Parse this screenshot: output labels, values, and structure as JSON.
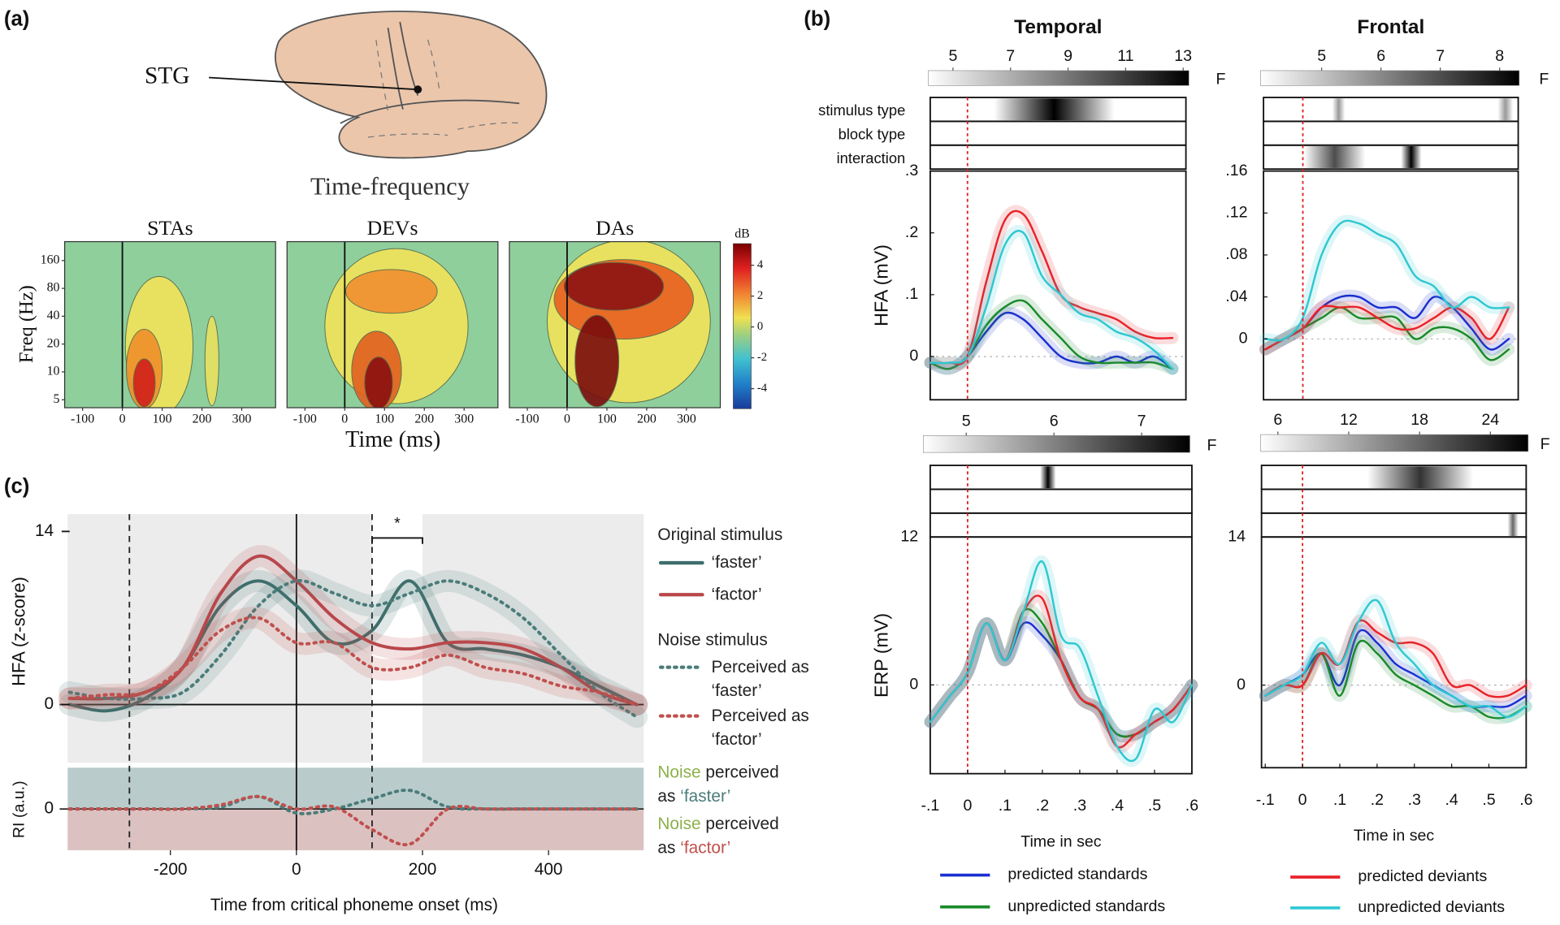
{
  "panel_labels": [
    "(a)",
    "(b)",
    "(c)"
  ],
  "panel_a": {
    "region_label": "STG",
    "title": "Time-frequency",
    "conditions": [
      "STAs",
      "DEVs",
      "DAs"
    ],
    "ylabel": "Freq (Hz)",
    "xlabel": "Time (ms)",
    "xlim": [
      -145,
      385
    ],
    "ylim": [
      4.1,
      256
    ],
    "ylog": true,
    "xticks": [
      -100,
      0,
      100,
      200,
      300
    ],
    "yticks": [
      5,
      10,
      20,
      40,
      80,
      160
    ],
    "colorbar_label": "dB",
    "clim": [
      -5.3,
      5.4
    ],
    "colorbar_ticks": [
      4,
      2,
      0,
      -2,
      -4
    ]
  },
  "chart_data": [
    {
      "type": "line",
      "title": "Temporal",
      "ylabel": "HFA (mV)",
      "strip_labels": [
        "stimulus type",
        "block type",
        "interaction"
      ],
      "f_label": "F",
      "f_lim": [
        4.14,
        13.2
      ],
      "f_ticks": [
        5,
        7,
        9,
        11,
        13
      ],
      "onset": 0,
      "baseline": 0,
      "x": [
        -0.1,
        -0.05,
        0,
        0.05,
        0.1,
        0.15,
        0.2,
        0.25,
        0.3,
        0.35,
        0.4,
        0.45,
        0.5,
        0.55
      ],
      "xlim": [
        -0.1,
        0.586
      ],
      "ylim": [
        -0.07,
        0.3
      ],
      "yticks": [
        0,
        {
          "value": 0.1,
          "label": ".1"
        },
        {
          "value": 0.2,
          "label": ".2"
        },
        {
          "value": 0.3,
          "label": ".3"
        }
      ],
      "series": [
        {
          "name": "predicted standards",
          "color": "#1a2fd0",
          "values": [
            -0.01,
            -0.02,
            0.0,
            0.04,
            0.07,
            0.06,
            0.03,
            0.0,
            -0.01,
            -0.01,
            0.0,
            -0.01,
            0.0,
            -0.02
          ]
        },
        {
          "name": "unpredicted standards",
          "color": "#1a8a2a",
          "values": [
            -0.01,
            -0.02,
            0.0,
            0.05,
            0.08,
            0.09,
            0.06,
            0.03,
            0.0,
            -0.01,
            -0.01,
            -0.01,
            -0.01,
            -0.02
          ]
        },
        {
          "name": "predicted deviants",
          "color": "#e8232a",
          "values": [
            -0.01,
            -0.01,
            0.0,
            0.12,
            0.22,
            0.23,
            0.17,
            0.1,
            0.08,
            0.07,
            0.06,
            0.04,
            0.03,
            0.03
          ]
        },
        {
          "name": "unpredicted deviants",
          "color": "#2ec8d2",
          "values": [
            -0.01,
            -0.01,
            0.0,
            0.08,
            0.18,
            0.2,
            0.13,
            0.1,
            0.07,
            0.06,
            0.04,
            0.03,
            0.01,
            -0.02
          ]
        }
      ]
    },
    {
      "type": "line",
      "ylabel": "ERP (mV)",
      "xlabel": "Time in sec",
      "f_label": "F",
      "f_lim": [
        4.51,
        7.55
      ],
      "f_ticks": [
        5,
        6,
        7
      ],
      "onset": 0,
      "baseline": 0,
      "x": [
        -0.1,
        -0.05,
        0,
        0.05,
        0.1,
        0.15,
        0.2,
        0.25,
        0.3,
        0.35,
        0.4,
        0.45,
        0.5,
        0.55,
        0.6
      ],
      "xlim": [
        -0.1,
        0.6
      ],
      "ylim": [
        -7.2,
        12
      ],
      "yticks": [
        0,
        12
      ],
      "xticks": [
        {
          "value": -0.1,
          "label": "-.1"
        },
        0,
        {
          "value": 0.1,
          "label": ".1"
        },
        {
          "value": 0.2,
          "label": ".2"
        },
        {
          "value": 0.3,
          "label": ".3"
        },
        {
          "value": 0.4,
          "label": ".4"
        },
        {
          "value": 0.5,
          "label": ".5"
        },
        {
          "value": 0.6,
          "label": ".6"
        }
      ],
      "series": [
        {
          "color": "#1a2fd0",
          "values": [
            -3,
            -1,
            1,
            5,
            2,
            5,
            4,
            2,
            -1,
            -2,
            -4,
            -4,
            -3,
            -2,
            0
          ]
        },
        {
          "color": "#1a8a2a",
          "values": [
            -3,
            -1,
            1,
            5,
            2,
            6,
            5,
            2,
            -1,
            -2,
            -4,
            -4,
            -3,
            -2,
            0
          ]
        },
        {
          "color": "#e8232a",
          "values": [
            -3,
            -1,
            1,
            5,
            2,
            6,
            7,
            2,
            -1,
            -2,
            -5,
            -4,
            -3,
            -2,
            0
          ]
        },
        {
          "color": "#2ec8d2",
          "values": [
            -3,
            -1,
            1,
            5,
            2,
            6,
            10,
            4,
            3,
            -1,
            -5,
            -6,
            -2,
            -3,
            0
          ]
        }
      ]
    },
    {
      "type": "line",
      "title": "Frontal",
      "f_label": "F",
      "f_lim": [
        3.97,
        8.33
      ],
      "f_ticks": [
        5,
        6,
        7,
        8
      ],
      "onset": 0,
      "baseline": 0,
      "x": [
        -0.1,
        -0.05,
        0,
        0.05,
        0.1,
        0.15,
        0.2,
        0.25,
        0.3,
        0.35,
        0.4,
        0.45,
        0.5,
        0.55
      ],
      "xlim": [
        -0.105,
        0.575
      ],
      "ylim": [
        -0.058,
        0.16
      ],
      "yticks": [
        0,
        {
          "value": 0.04,
          "label": ".04"
        },
        {
          "value": 0.08,
          "label": ".08"
        },
        {
          "value": 0.12,
          "label": ".12"
        },
        {
          "value": 0.16,
          "label": ".16"
        }
      ],
      "series": [
        {
          "color": "#1a2fd0",
          "values": [
            -0.01,
            0.0,
            0.01,
            0.03,
            0.04,
            0.04,
            0.03,
            0.03,
            0.02,
            0.04,
            0.03,
            0.01,
            -0.01,
            0.0
          ]
        },
        {
          "color": "#1a8a2a",
          "values": [
            -0.01,
            0.0,
            0.01,
            0.02,
            0.03,
            0.02,
            0.02,
            0.02,
            0.0,
            0.01,
            0.01,
            0.0,
            -0.02,
            -0.01
          ]
        },
        {
          "color": "#e8232a",
          "values": [
            -0.01,
            0.0,
            0.01,
            0.03,
            0.03,
            0.03,
            0.02,
            0.01,
            0.01,
            0.02,
            0.03,
            0.02,
            0.0,
            0.03
          ]
        },
        {
          "color": "#2ec8d2",
          "values": [
            0.0,
            0.0,
            0.02,
            0.08,
            0.11,
            0.11,
            0.1,
            0.09,
            0.06,
            0.05,
            0.03,
            0.04,
            0.03,
            0.03
          ]
        }
      ]
    },
    {
      "type": "line",
      "xlabel": "Time in sec",
      "f_label": "F",
      "f_lim": [
        4.53,
        27.2
      ],
      "f_ticks": [
        6,
        12,
        18,
        24
      ],
      "onset": 0,
      "baseline": 0,
      "x": [
        -0.1,
        -0.05,
        0,
        0.05,
        0.1,
        0.15,
        0.2,
        0.25,
        0.3,
        0.35,
        0.4,
        0.45,
        0.5,
        0.55,
        0.6
      ],
      "xlim": [
        -0.11,
        0.6
      ],
      "ylim": [
        -7.8,
        14
      ],
      "yticks": [
        0,
        14
      ],
      "xticks": [
        {
          "value": -0.1,
          "label": "-.1"
        },
        0,
        {
          "value": 0.1,
          "label": ".1"
        },
        {
          "value": 0.2,
          "label": ".2"
        },
        {
          "value": 0.3,
          "label": ".3"
        },
        {
          "value": 0.4,
          "label": ".4"
        },
        {
          "value": 0.5,
          "label": ".5"
        },
        {
          "value": 0.6,
          "label": ".6"
        }
      ],
      "series": [
        {
          "color": "#1a2fd0",
          "values": [
            -1,
            0,
            1,
            3,
            0,
            5,
            4,
            2,
            1,
            0,
            -1,
            -2,
            -2,
            -2,
            -1
          ]
        },
        {
          "color": "#1a8a2a",
          "values": [
            -1,
            0,
            0,
            3,
            -1,
            4,
            3,
            1,
            0,
            -1,
            -2,
            -2,
            -3,
            -3,
            -2
          ]
        },
        {
          "color": "#e8232a",
          "values": [
            -1,
            0,
            0,
            3,
            2,
            6,
            5,
            4,
            4,
            3,
            0,
            0,
            -1,
            -1,
            0
          ]
        },
        {
          "color": "#2ec8d2",
          "values": [
            -1,
            0,
            1,
            4,
            2,
            6,
            8,
            4,
            2,
            0,
            -1,
            -2,
            -2,
            -3,
            -2
          ]
        }
      ]
    },
    {
      "type": "line",
      "ylabel": "HFA (z-score)",
      "legend_groups": [
        "Original stimulus",
        "Noise stimulus"
      ],
      "x": [
        -360,
        -300,
        -240,
        -180,
        -120,
        -60,
        0,
        60,
        120,
        180,
        240,
        300,
        360,
        420,
        480,
        540
      ],
      "xlim": [
        -363,
        551
      ],
      "ylim": [
        -4.7,
        15.4
      ],
      "yticks": [
        0,
        14
      ],
      "onset": 0,
      "dashed_lines": [
        -265,
        120
      ],
      "window": [
        120,
        200
      ],
      "window_label": "*",
      "series": [
        {
          "name": "‘faster’",
          "color": "#3e6e6c",
          "style": "solid",
          "values": [
            0,
            -0.5,
            0.5,
            3,
            8,
            10,
            8,
            5,
            6,
            10,
            5,
            4.5,
            4,
            3,
            1.5,
            0
          ]
        },
        {
          "name": "‘factor’",
          "color": "#b8474a",
          "style": "solid",
          "values": [
            0.5,
            0.5,
            1,
            3,
            9,
            12,
            10,
            7,
            5,
            4.5,
            5,
            5,
            4.5,
            3,
            1,
            0
          ]
        },
        {
          "name": "Perceived as ‘faster’",
          "color": "#4a7c7a",
          "style": "dotted",
          "values": [
            1,
            0.5,
            0.5,
            1,
            4,
            8,
            10,
            9,
            8,
            9,
            10,
            9,
            7,
            4,
            1,
            -1
          ]
        },
        {
          "name": "Perceived as ‘factor’",
          "color": "#c0504d",
          "style": "dotted",
          "values": [
            0.5,
            0.8,
            1,
            3,
            6,
            7,
            5,
            5,
            3,
            3,
            4,
            3,
            2.5,
            1.5,
            1,
            0
          ]
        }
      ]
    },
    {
      "type": "line",
      "ylabel": "RI (a.u.)",
      "xlabel": "Time from critical phoneme onset (ms)",
      "x": [
        -360,
        -300,
        -240,
        -180,
        -120,
        -60,
        0,
        60,
        120,
        180,
        240,
        300,
        360,
        420,
        480,
        540
      ],
      "xlim": [
        -363,
        551
      ],
      "ylim": [
        -1,
        1
      ],
      "yticks": [
        0
      ],
      "xticks": [
        -200,
        0,
        200,
        400
      ],
      "onset": 0,
      "dashed_lines": [
        -265,
        120
      ],
      "prefix_color": "#8db04a",
      "legend": [
        {
          "prefix": "Noise",
          "text": "perceived as",
          "word": "‘faster’"
        },
        {
          "prefix": "Noise",
          "text": "perceived as",
          "word": "‘factor’"
        }
      ],
      "series": [
        {
          "color": "#4a7c7a",
          "style": "dotted",
          "values": [
            0,
            0,
            0,
            0,
            0.05,
            0.3,
            -0.1,
            0,
            0.25,
            0.45,
            0.05,
            0,
            0,
            0,
            0,
            0
          ]
        },
        {
          "color": "#c0504d",
          "style": "dotted",
          "values": [
            0,
            0,
            0,
            0,
            0.1,
            0.3,
            0,
            0.05,
            -0.5,
            -0.85,
            0,
            0,
            0,
            0,
            0,
            0
          ]
        }
      ]
    }
  ]
}
